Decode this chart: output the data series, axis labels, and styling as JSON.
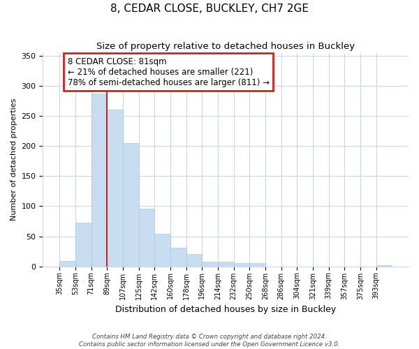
{
  "title": "8, CEDAR CLOSE, BUCKLEY, CH7 2GE",
  "subtitle": "Size of property relative to detached houses in Buckley",
  "xlabel": "Distribution of detached houses by size in Buckley",
  "ylabel": "Number of detached properties",
  "bar_color": "#c8ddf0",
  "bar_edge_color": "#a8c8e8",
  "highlight_color": "#cc2222",
  "background_color": "#ffffff",
  "grid_color": "#c8d8e8",
  "categories": [
    "35sqm",
    "53sqm",
    "71sqm",
    "89sqm",
    "107sqm",
    "125sqm",
    "142sqm",
    "160sqm",
    "178sqm",
    "196sqm",
    "214sqm",
    "232sqm",
    "250sqm",
    "268sqm",
    "286sqm",
    "304sqm",
    "321sqm",
    "339sqm",
    "357sqm",
    "375sqm",
    "393sqm"
  ],
  "values": [
    9,
    73,
    287,
    261,
    205,
    96,
    54,
    31,
    21,
    8,
    8,
    5,
    5,
    0,
    0,
    0,
    0,
    0,
    0,
    0,
    2
  ],
  "property_label": "8 CEDAR CLOSE: 81sqm",
  "pct_smaller": 21,
  "n_smaller": 221,
  "pct_larger": 78,
  "n_larger": 811,
  "vline_index": 3,
  "ylim": [
    0,
    355
  ],
  "yticks": [
    0,
    50,
    100,
    150,
    200,
    250,
    300,
    350
  ],
  "footer_line1": "Contains HM Land Registry data © Crown copyright and database right 2024.",
  "footer_line2": "Contains public sector information licensed under the Open Government Licence v3.0."
}
